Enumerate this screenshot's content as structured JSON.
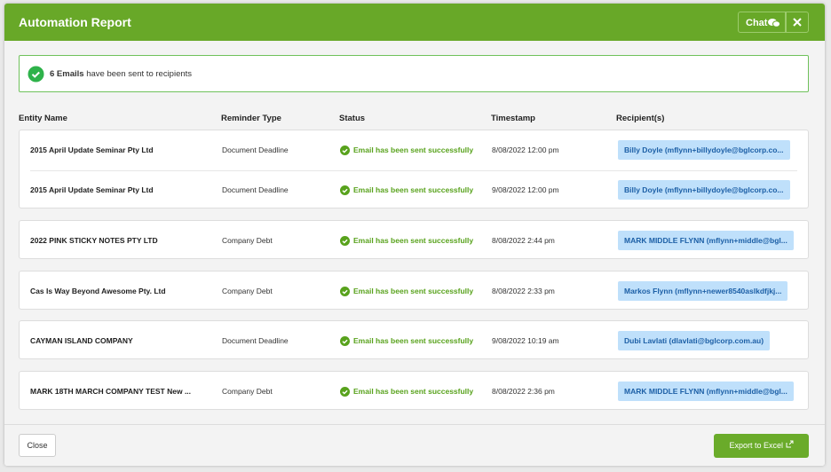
{
  "header": {
    "title": "Automation Report",
    "chat_button": "Chat"
  },
  "summary": {
    "count": "6 Emails",
    "text": "have been sent to recipients"
  },
  "table": {
    "columns": [
      "Entity Name",
      "Reminder Type",
      "Status",
      "Timestamp",
      "Recipient(s)"
    ],
    "groups": [
      [
        [
          "2015 April Update Seminar Pty Ltd",
          "Document Deadline",
          "Email has been sent successfully",
          "8/08/2022 12:00 pm",
          "Billy Doyle (mflynn+billydoyle@bglcorp.co..."
        ],
        [
          "2015 April Update Seminar Pty Ltd",
          "Document Deadline",
          "Email has been sent successfully",
          "9/08/2022 12:00 pm",
          "Billy Doyle (mflynn+billydoyle@bglcorp.co..."
        ]
      ],
      [
        [
          "2022 PINK STICKY NOTES PTY LTD",
          "Company Debt",
          "Email has been sent successfully",
          "8/08/2022 2:44 pm",
          "MARK MIDDLE FLYNN (mflynn+middle@bgl..."
        ]
      ],
      [
        [
          "Cas Is Way Beyond Awesome Pty. Ltd",
          "Company Debt",
          "Email has been sent successfully",
          "8/08/2022 2:33 pm",
          "Markos Flynn (mflynn+newer8540aslkdfjkj..."
        ]
      ],
      [
        [
          "CAYMAN ISLAND COMPANY",
          "Document Deadline",
          "Email has been sent successfully",
          "9/08/2022 10:19 am",
          "Dubi Lavlati (dlavlati@bglcorp.com.au)"
        ]
      ],
      [
        [
          "MARK 18TH MARCH COMPANY TEST New ...",
          "Company Debt",
          "Email has been sent successfully",
          "8/08/2022 2:36 pm",
          "MARK MIDDLE FLYNN (mflynn+middle@bgl..."
        ]
      ]
    ]
  },
  "footer": {
    "close": "Close",
    "export": "Export to Excel"
  }
}
